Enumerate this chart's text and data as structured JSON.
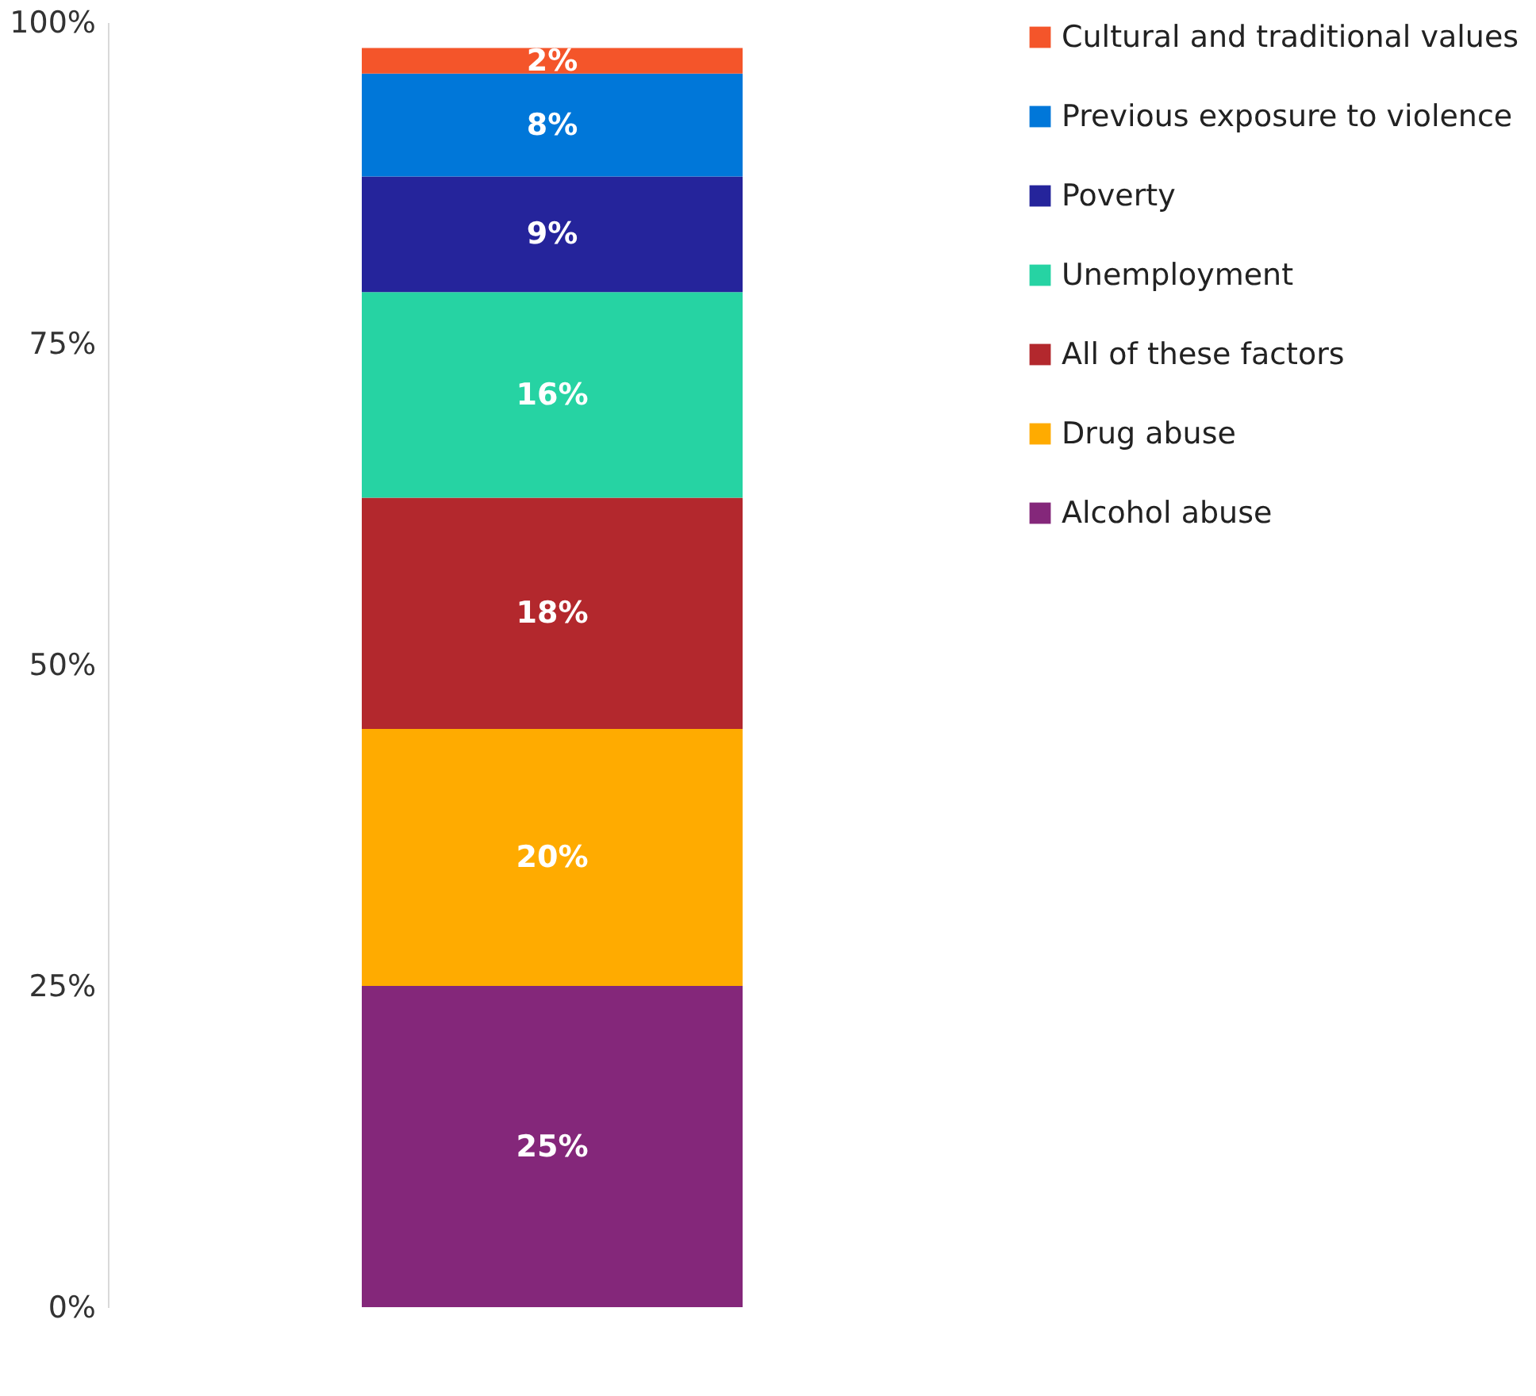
{
  "chart_data": {
    "type": "bar",
    "stacked": true,
    "categories": [
      null
    ],
    "series": [
      {
        "name": "Alcohol abuse",
        "color": "#84277a",
        "values": [
          25
        ],
        "value_labels": [
          "25%"
        ]
      },
      {
        "name": "Drug abuse",
        "color": "#ffab00",
        "values": [
          20
        ],
        "value_labels": [
          "20%"
        ]
      },
      {
        "name": "All of these factors",
        "color": "#b3282d",
        "values": [
          18
        ],
        "value_labels": [
          "18%"
        ]
      },
      {
        "name": "Unemployment",
        "color": "#26d3a3",
        "values": [
          16
        ],
        "value_labels": [
          "16%"
        ]
      },
      {
        "name": "Poverty",
        "color": "#25249b",
        "values": [
          9
        ],
        "value_labels": [
          "9%"
        ]
      },
      {
        "name": "Previous exposure to violence",
        "color": "#0077d9",
        "values": [
          8
        ],
        "value_labels": [
          "8%"
        ]
      },
      {
        "name": "Cultural and traditional values",
        "color": "#f4552a",
        "values": [
          2
        ],
        "value_labels": [
          "2%"
        ]
      }
    ],
    "ylim": [
      0,
      100
    ],
    "yticks": [
      {
        "value": 0,
        "label": "0%"
      },
      {
        "value": 25,
        "label": "25%"
      },
      {
        "value": 50,
        "label": "50%"
      },
      {
        "value": 75,
        "label": "75%"
      },
      {
        "value": 100,
        "label": "100%"
      }
    ],
    "grid": false,
    "legend": "right"
  }
}
